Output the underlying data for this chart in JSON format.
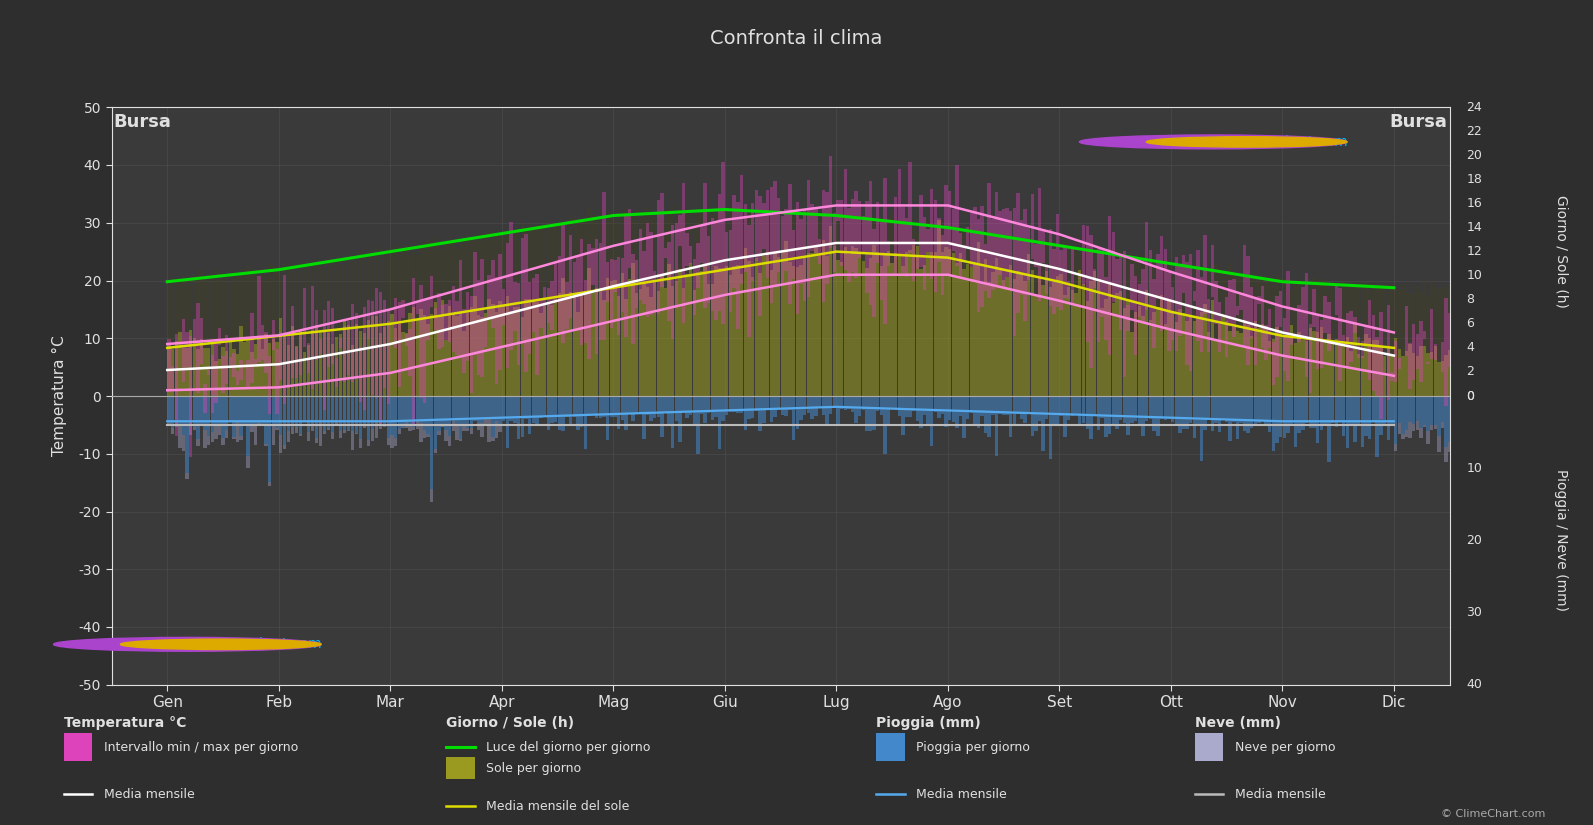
{
  "title": "Confronta il clima",
  "city_left": "Bursa",
  "city_right": "Bursa",
  "bg_color": "#2e2e2e",
  "plot_bg_color": "#3a3a3a",
  "grid_color": "#555555",
  "text_color": "#e0e0e0",
  "months": [
    "Gen",
    "Feb",
    "Mar",
    "Apr",
    "Mag",
    "Giu",
    "Lug",
    "Ago",
    "Set",
    "Ott",
    "Nov",
    "Dic"
  ],
  "temp_mean": [
    4.5,
    5.5,
    9.0,
    14.0,
    19.0,
    23.5,
    26.5,
    26.5,
    22.0,
    16.5,
    11.0,
    7.0
  ],
  "temp_max_mean": [
    9.0,
    10.5,
    15.0,
    20.5,
    26.0,
    30.5,
    33.0,
    33.0,
    28.0,
    21.5,
    15.5,
    11.0
  ],
  "temp_min_mean": [
    1.0,
    1.5,
    4.0,
    8.5,
    13.0,
    17.5,
    21.0,
    21.0,
    16.5,
    11.5,
    7.0,
    3.5
  ],
  "daylight": [
    9.5,
    10.5,
    12.0,
    13.5,
    15.0,
    15.5,
    15.0,
    14.0,
    12.5,
    11.0,
    9.5,
    9.0
  ],
  "sunshine": [
    4.0,
    5.0,
    6.0,
    7.5,
    9.0,
    10.5,
    12.0,
    11.5,
    9.5,
    7.0,
    5.0,
    4.0
  ],
  "rain_mean_mm": [
    3.5,
    3.5,
    3.5,
    3.0,
    2.5,
    2.0,
    1.5,
    2.0,
    2.5,
    3.0,
    3.5,
    3.5
  ],
  "snow_mean_mm": [
    5.0,
    5.0,
    5.0,
    5.0,
    5.0,
    5.0,
    5.0,
    5.0,
    5.0,
    5.0,
    5.0,
    5.0
  ],
  "logo_text": "ClimeChart.com",
  "copyright": "© ClimeChart.com"
}
